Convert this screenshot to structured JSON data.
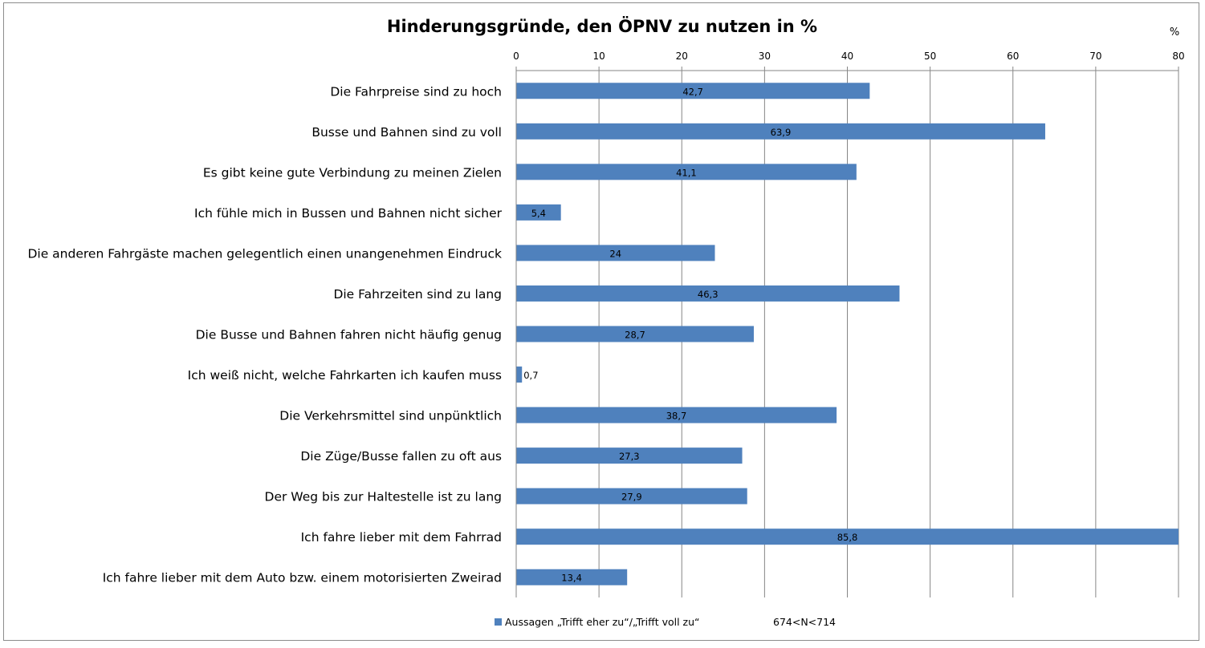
{
  "chart_data": {
    "type": "bar",
    "orientation": "horizontal",
    "title": "Hinderungsgründe, den ÖPNV zu nutzen in %",
    "unit_label": "%",
    "xlim": [
      0,
      80
    ],
    "ticks": [
      0,
      10,
      20,
      30,
      40,
      50,
      60,
      70,
      80
    ],
    "grid": true,
    "categories": [
      "Die Fahrpreise sind zu hoch",
      "Busse und Bahnen sind zu voll",
      "Es gibt keine gute Verbindung zu meinen Zielen",
      "Ich fühle mich in Bussen und Bahnen nicht sicher",
      "Die anderen Fahrgäste machen gelegentlich einen unangenehmen Eindruck",
      "Die Fahrzeiten sind zu lang",
      "Die Busse und Bahnen fahren nicht häufig genug",
      "Ich weiß nicht, welche Fahrkarten ich kaufen muss",
      "Die Verkehrsmittel sind unpünktlich",
      "Die Züge/Busse fallen zu oft aus",
      "Der Weg bis zur Haltestelle ist zu lang",
      "Ich fahre lieber mit dem Fahrrad",
      "Ich fahre lieber mit dem Auto bzw. einem motorisierten Zweirad"
    ],
    "values": [
      42.7,
      63.9,
      41.1,
      5.4,
      24,
      46.3,
      28.7,
      0.7,
      38.7,
      27.3,
      27.9,
      85.8,
      13.4
    ],
    "value_labels": [
      "42,7",
      "63,9",
      "41,1",
      "5,4",
      "24",
      "46,3",
      "28,7",
      "0,7",
      "38,7",
      "27,3",
      "27,9",
      "85,8",
      "13,4"
    ],
    "series": [
      {
        "name": "Aussagen „Trifft eher zu“/„Trifft voll zu“",
        "color": "#4f81bd"
      }
    ],
    "legend_position": "bottom",
    "note": "674<N<714"
  }
}
